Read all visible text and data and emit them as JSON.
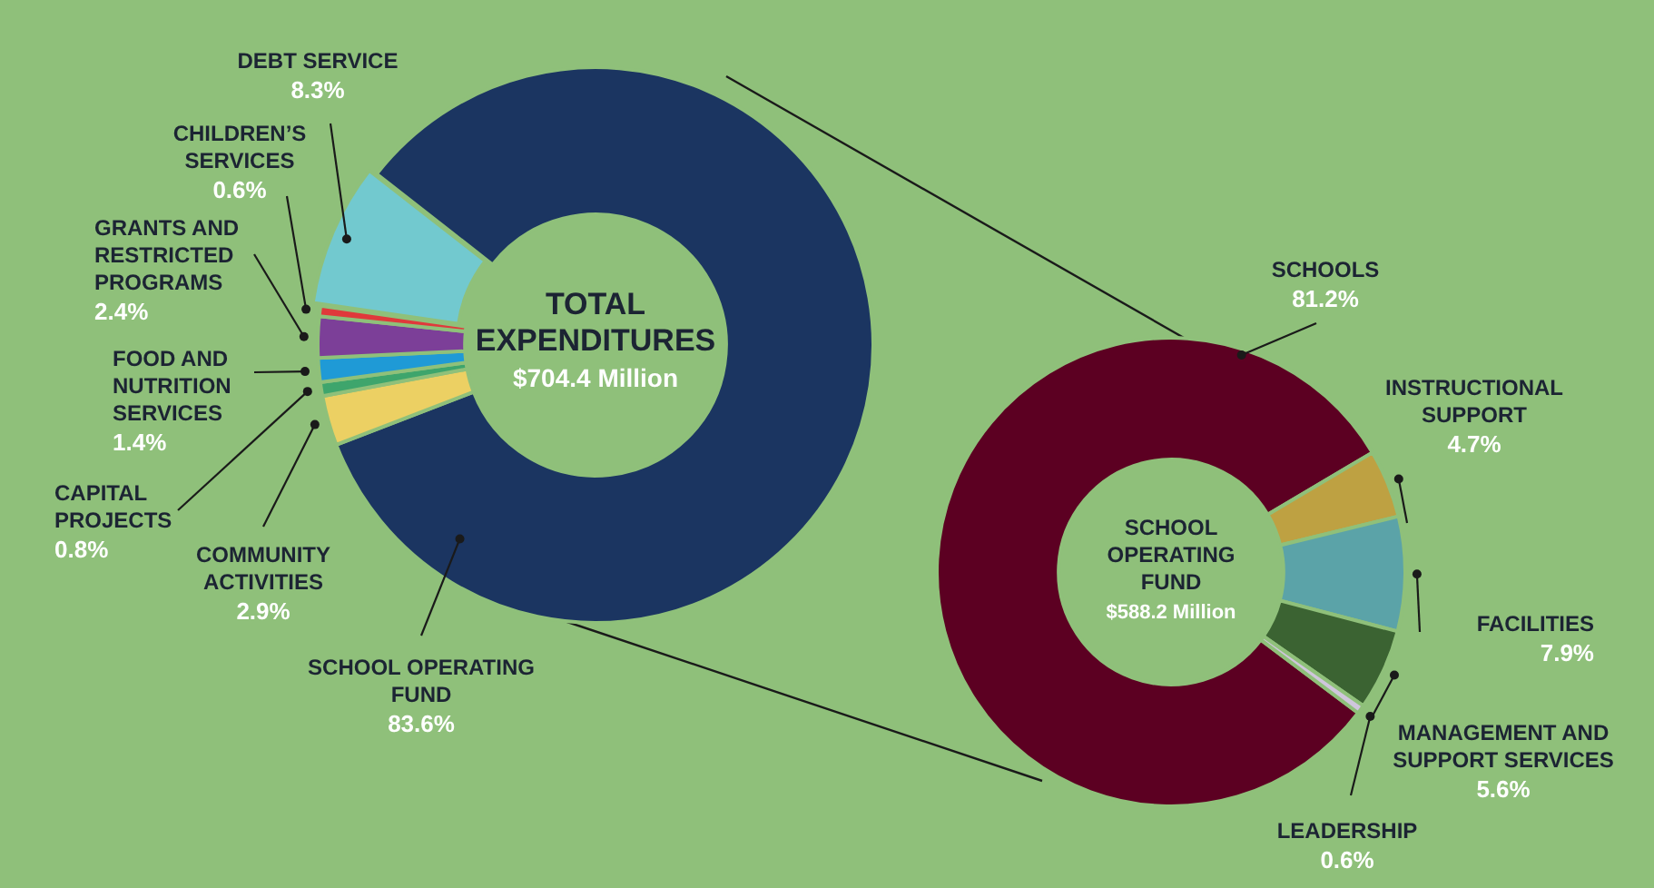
{
  "chart_data": [
    {
      "type": "donut",
      "title": "TOTAL EXPENDITURES",
      "annotations": [
        "$704.4 Million"
      ],
      "categories": [
        "SCHOOL OPERATING FUND",
        "COMMUNITY ACTIVITIES",
        "CAPITAL PROJECTS",
        "FOOD AND NUTRITION SERVICES",
        "GRANTS AND RESTRICTED PROGRAMS",
        "CHILDREN’S SERVICES",
        "DEBT SERVICE"
      ],
      "values": [
        83.6,
        2.9,
        0.8,
        1.4,
        2.4,
        0.6,
        8.3
      ],
      "value_labels": [
        "83.6%",
        "2.9%",
        "0.8%",
        "1.4%",
        "2.4%",
        "0.6%",
        "8.3%"
      ],
      "colors": [
        "#1b3561",
        "#ecd063",
        "#3ea56c",
        "#1f9ad6",
        "#7c3f98",
        "#e0393b",
        "#72c9cf"
      ]
    },
    {
      "type": "donut",
      "title": "SCHOOL OPERATING FUND",
      "annotations": [
        "$588.2 Million"
      ],
      "categories": [
        "SCHOOLS",
        "INSTRUCTIONAL SUPPORT",
        "FACILITIES",
        "MANAGEMENT AND SUPPORT SERVICES",
        "LEADERSHIP"
      ],
      "values": [
        81.2,
        4.7,
        7.9,
        5.6,
        0.6
      ],
      "value_labels": [
        "81.2%",
        "4.7%",
        "7.9%",
        "5.6%",
        "0.6%"
      ],
      "colors": [
        "#5c0022",
        "#bea142",
        "#5ba3a8",
        "#3b6332",
        "#cfc6dc"
      ]
    }
  ]
}
